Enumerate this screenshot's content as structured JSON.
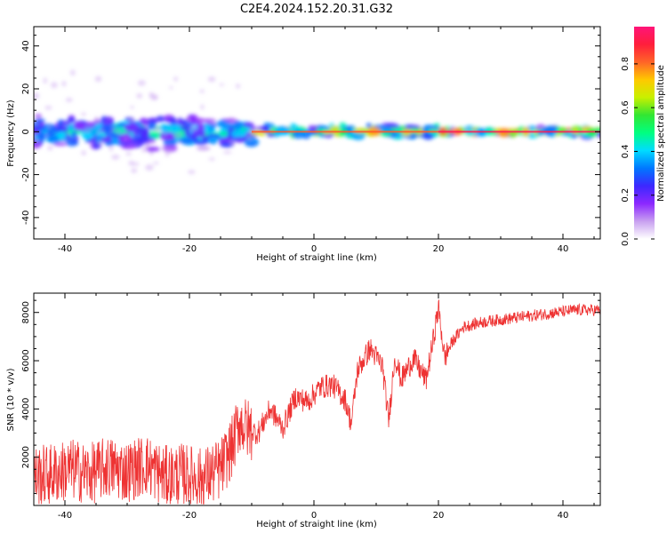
{
  "title": "C2E4.2024.152.20.31.G32",
  "chart_data": [
    {
      "type": "heatmap",
      "xlabel": "Height of straight line (km)",
      "ylabel": "Frequency (Hz)",
      "xlim": [
        -45,
        46
      ],
      "ylim": [
        -50,
        49
      ],
      "xticks": [
        -40,
        -20,
        0,
        20,
        40
      ],
      "yticks": [
        -40,
        -20,
        0,
        20,
        40
      ],
      "colorbar": {
        "label": "Normalized spectral amplitude",
        "range": [
          0,
          0.97
        ],
        "ticks": [
          0.0,
          0.2,
          0.4,
          0.6,
          0.8
        ],
        "colormap": [
          "#ffffff",
          "#c8a0f0",
          "#8c28ff",
          "#3c28ff",
          "#0078ff",
          "#00dcff",
          "#00ff80",
          "#32e632",
          "#c8f000",
          "#ffc800",
          "#ff6428",
          "#ff1e3c",
          "#ff1478"
        ]
      },
      "note_on_data": "energy concentrated near 0 Hz; broad scatter (~ -8 to 8 Hz) for heights below -10 km, narrow high-amplitude ridge above -10 km",
      "ridge_segments": [
        {
          "x0": -45,
          "x1": -10,
          "f_spread": 8,
          "peak": 0.55
        },
        {
          "x0": -10,
          "x1": 20,
          "f_spread": 3,
          "peak": 0.85
        },
        {
          "x0": 20,
          "x1": 46,
          "f_spread": 1.5,
          "peak": 0.95
        }
      ]
    },
    {
      "type": "line",
      "xlabel": "Height of straight line (km)",
      "ylabel": "SNR (10 * v/v)",
      "xlim": [
        -45,
        46
      ],
      "ylim": [
        0,
        8800
      ],
      "xticks": [
        -40,
        -20,
        0,
        20,
        40
      ],
      "yticks": [
        2000,
        4000,
        6000,
        8000
      ],
      "series": [
        {
          "color": "#ee3333",
          "x": [
            -45,
            -42,
            -39,
            -36,
            -33,
            -30,
            -27,
            -24,
            -21,
            -18,
            -15,
            -13,
            -12,
            -11,
            -9,
            -7,
            -5,
            -3,
            -1,
            1,
            3,
            5,
            6,
            7,
            9,
            11,
            12,
            13,
            14,
            16,
            18,
            19,
            20,
            21,
            22,
            24,
            27,
            30,
            33,
            36,
            39,
            42,
            46
          ],
          "y": [
            1200,
            1300,
            1500,
            1300,
            1600,
            1400,
            1700,
            1200,
            1300,
            1100,
            1500,
            2500,
            3500,
            3200,
            3000,
            4000,
            3200,
            4500,
            4300,
            4900,
            5000,
            4400,
            3400,
            5600,
            6500,
            5800,
            3500,
            6200,
            5200,
            6100,
            5200,
            6600,
            8200,
            6100,
            6700,
            7400,
            7600,
            7700,
            7800,
            7900,
            8000,
            8100,
            8100
          ],
          "noise_amplitude_note": "highly oscillatory trace; amplitude ~±1500 below -10 km, ~±600 elsewhere"
        }
      ]
    }
  ]
}
